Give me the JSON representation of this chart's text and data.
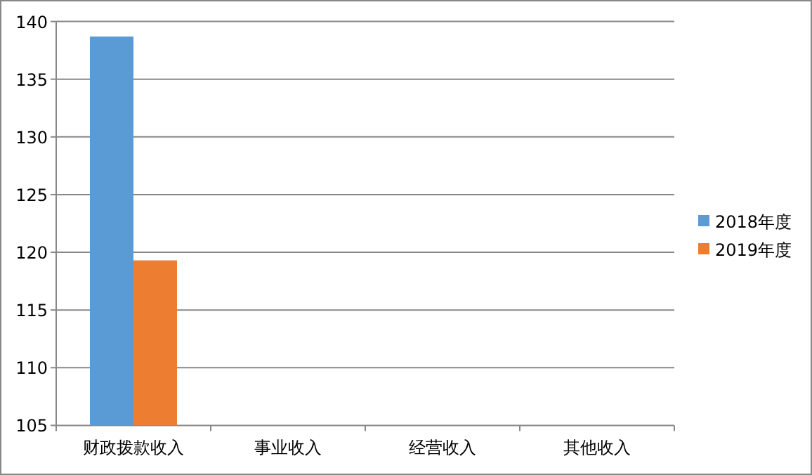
{
  "chart_data": {
    "type": "bar",
    "categories": [
      "财政拨款收入",
      "事业收入",
      "经营收入",
      "其他收入"
    ],
    "series": [
      {
        "name": "2018年度",
        "color": "#5b9bd5",
        "values": [
          138.7,
          null,
          null,
          null
        ]
      },
      {
        "name": "2019年度",
        "color": "#ed7d31",
        "values": [
          119.3,
          null,
          null,
          null
        ]
      }
    ],
    "ylim": [
      105,
      140
    ],
    "yticks": [
      105,
      110,
      115,
      120,
      125,
      130,
      135,
      140
    ],
    "grid": "y",
    "legend": "right"
  }
}
